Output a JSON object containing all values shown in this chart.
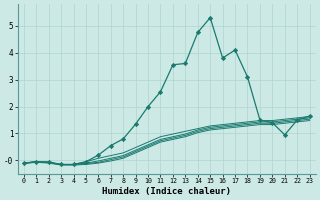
{
  "xlabel": "Humidex (Indice chaleur)",
  "ylabel": "",
  "background_color": "#cce9e6",
  "grid_color": "#afd4d0",
  "line_color": "#1a7a6e",
  "xlim": [
    -0.5,
    23.5
  ],
  "ylim": [
    -0.5,
    5.8
  ],
  "yticks": [
    0,
    1,
    2,
    3,
    4,
    5
  ],
  "ytick_labels": [
    "-0",
    "1",
    "2",
    "3",
    "4",
    "5"
  ],
  "xticks": [
    0,
    1,
    2,
    3,
    4,
    5,
    6,
    7,
    8,
    9,
    10,
    11,
    12,
    13,
    14,
    15,
    16,
    17,
    18,
    19,
    20,
    21,
    22,
    23
  ],
  "series": [
    {
      "x": [
        0,
        1,
        2,
        3,
        4,
        5,
        6,
        7,
        8,
        9,
        10,
        11,
        12,
        13,
        14,
        15,
        16,
        17,
        18,
        19,
        20,
        21,
        22,
        23
      ],
      "y": [
        -0.1,
        -0.05,
        -0.08,
        -0.15,
        -0.15,
        -0.05,
        0.08,
        0.18,
        0.28,
        0.48,
        0.68,
        0.88,
        0.98,
        1.08,
        1.18,
        1.28,
        1.33,
        1.38,
        1.43,
        1.48,
        1.48,
        1.53,
        1.58,
        1.63
      ],
      "marker": false
    },
    {
      "x": [
        0,
        1,
        2,
        3,
        4,
        5,
        6,
        7,
        8,
        9,
        10,
        11,
        12,
        13,
        14,
        15,
        16,
        17,
        18,
        19,
        20,
        21,
        22,
        23
      ],
      "y": [
        -0.1,
        -0.05,
        -0.08,
        -0.15,
        -0.15,
        -0.1,
        -0.02,
        0.08,
        0.18,
        0.38,
        0.58,
        0.78,
        0.88,
        0.98,
        1.13,
        1.23,
        1.28,
        1.33,
        1.38,
        1.43,
        1.43,
        1.48,
        1.53,
        1.58
      ],
      "marker": false
    },
    {
      "x": [
        0,
        1,
        2,
        3,
        4,
        5,
        6,
        7,
        8,
        9,
        10,
        11,
        12,
        13,
        14,
        15,
        16,
        17,
        18,
        19,
        20,
        21,
        22,
        23
      ],
      "y": [
        -0.1,
        -0.05,
        -0.08,
        -0.16,
        -0.16,
        -0.12,
        -0.07,
        0.03,
        0.13,
        0.33,
        0.53,
        0.73,
        0.83,
        0.93,
        1.08,
        1.18,
        1.23,
        1.28,
        1.33,
        1.38,
        1.38,
        1.43,
        1.48,
        1.53
      ],
      "marker": false
    },
    {
      "x": [
        0,
        1,
        2,
        3,
        4,
        5,
        6,
        7,
        8,
        9,
        10,
        11,
        12,
        13,
        14,
        15,
        16,
        17,
        18,
        19,
        20,
        21,
        22,
        23
      ],
      "y": [
        -0.12,
        -0.07,
        -0.1,
        -0.17,
        -0.17,
        -0.15,
        -0.1,
        -0.02,
        0.08,
        0.28,
        0.48,
        0.68,
        0.78,
        0.88,
        1.03,
        1.13,
        1.18,
        1.23,
        1.28,
        1.33,
        1.33,
        1.38,
        1.43,
        1.48
      ],
      "marker": false
    },
    {
      "x": [
        0,
        1,
        2,
        3,
        4,
        5,
        6,
        7,
        8,
        9,
        10,
        11,
        12,
        13,
        14,
        15,
        16,
        17,
        18,
        19,
        20,
        21,
        22,
        23
      ],
      "y": [
        -0.1,
        -0.05,
        -0.05,
        -0.15,
        -0.15,
        -0.05,
        0.2,
        0.55,
        0.8,
        1.35,
        2.0,
        2.55,
        3.55,
        3.6,
        4.75,
        5.3,
        3.8,
        4.1,
        3.1,
        1.5,
        1.4,
        0.95,
        1.5,
        1.65
      ],
      "marker": true
    }
  ]
}
